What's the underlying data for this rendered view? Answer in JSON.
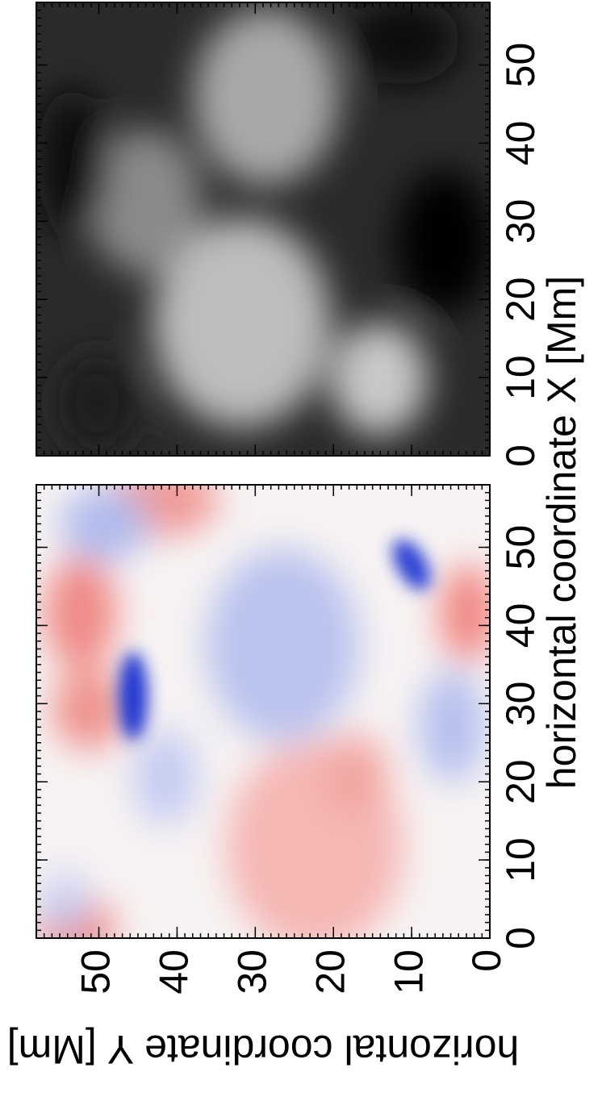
{
  "chart_data": [
    {
      "type": "image",
      "colormap": "red-blue",
      "xlim": [
        0,
        58
      ],
      "ylim": [
        0,
        58
      ],
      "xticks": [
        0,
        10,
        20,
        30,
        40,
        50
      ],
      "yticks": [
        0,
        10,
        20,
        30,
        40,
        50
      ],
      "ytick_labels": true
    },
    {
      "type": "image",
      "colormap": "gray",
      "xlim": [
        0,
        58
      ],
      "ylim": [
        0,
        58
      ],
      "xticks": [
        0,
        10,
        20,
        30,
        40,
        50
      ],
      "yticks": [
        0,
        10,
        20,
        30,
        40,
        50
      ],
      "ytick_labels": false
    }
  ],
  "labels": {
    "xlabel": "horizontal coordinate  X  [Mm]",
    "ylabel": "horizontal coordinate  Y  [Mm]"
  }
}
